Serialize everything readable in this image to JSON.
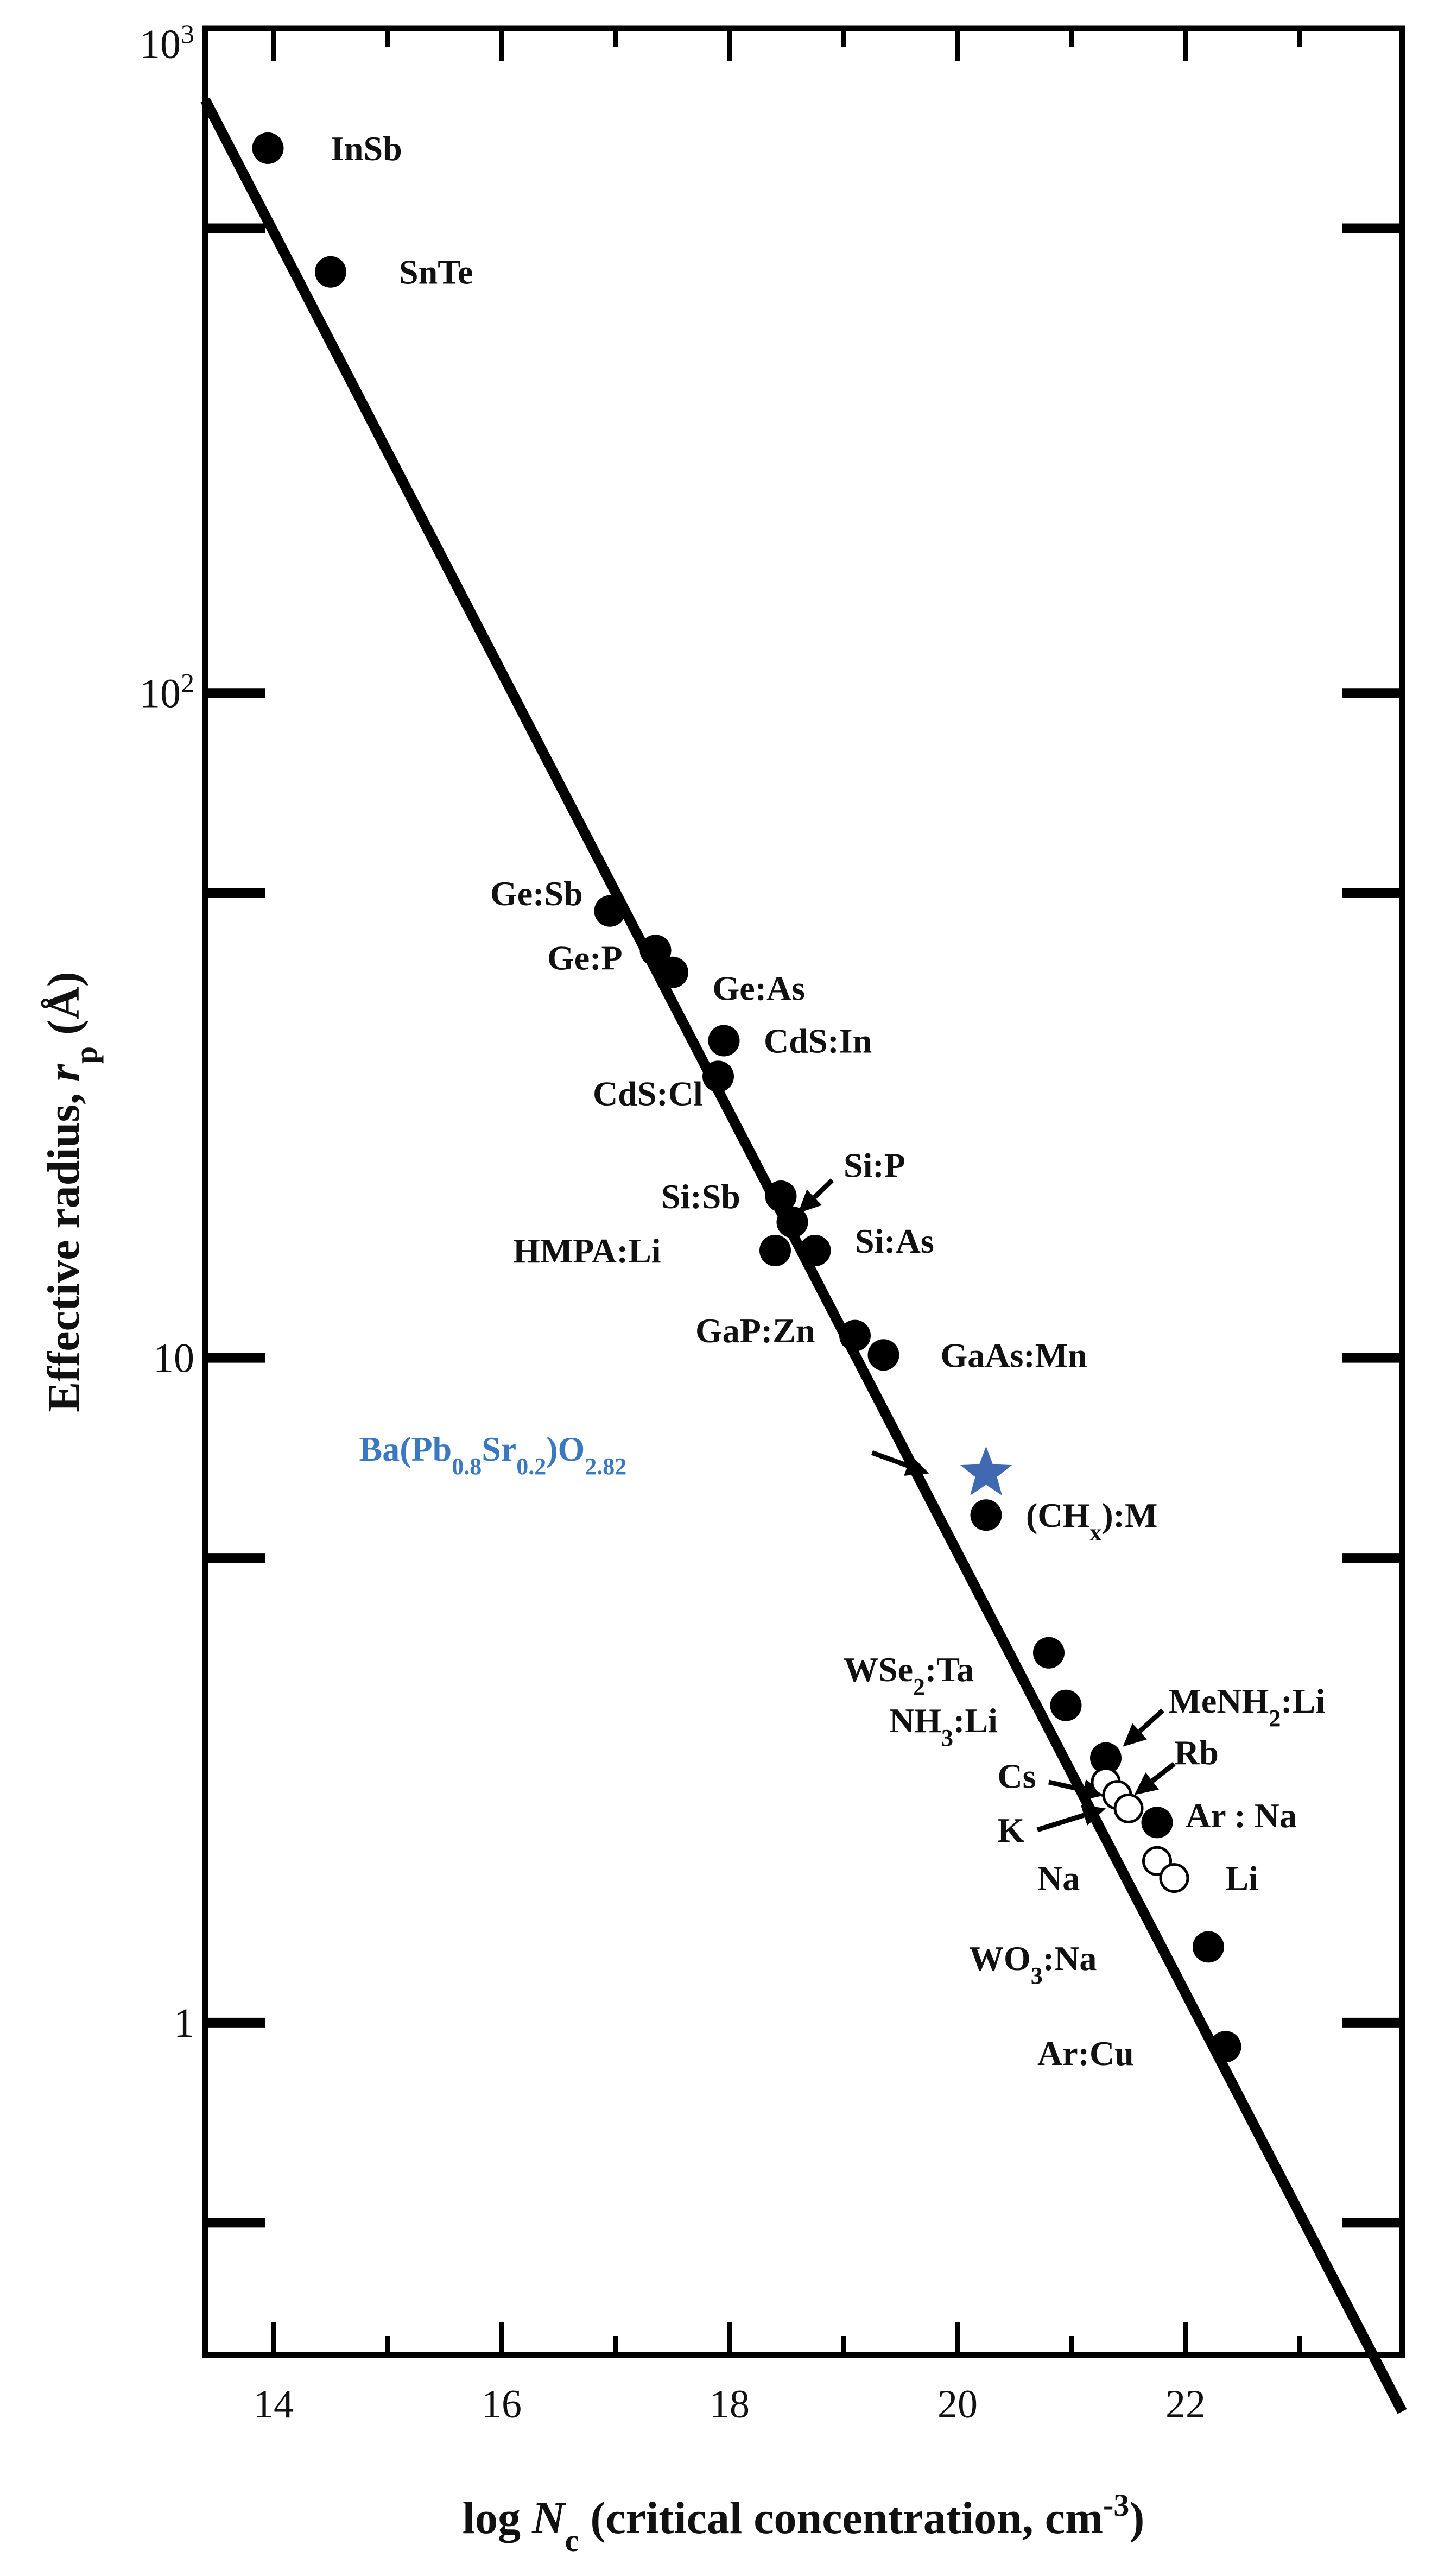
{
  "chart_data": {
    "type": "scatter",
    "xlabel_prefix": "log ",
    "xlabel_var": "N",
    "xlabel_sub": "c",
    "xlabel_rest": " (critical concentration, cm",
    "xlabel_sup": "-3",
    "xlabel_close": ")",
    "ylabel_prefix": "Effective radius, ",
    "ylabel_var": "r",
    "ylabel_sub": "p",
    "ylabel_rest": " (Å)",
    "xlim": [
      13.4,
      23.9
    ],
    "ylim_log10": [
      -0.5,
      3
    ],
    "log_y": true,
    "x_ticks": [
      "14",
      "16",
      "18",
      "20",
      "22"
    ],
    "x_tick_values": [
      14,
      16,
      18,
      20,
      22
    ],
    "y_ticks": [
      {
        "value": 1,
        "base": "1",
        "exp": ""
      },
      {
        "value": 10,
        "base": "10",
        "exp": ""
      },
      {
        "value": 100,
        "base": "10",
        "exp": "2"
      },
      {
        "value": 1000,
        "base": "10",
        "exp": "3"
      }
    ],
    "y_minor_ticks": [
      0.5,
      5,
      50,
      500
    ],
    "fit_line": {
      "x": [
        13.4,
        23.9
      ],
      "y": [
        780,
        0.26
      ]
    },
    "points_filled": [
      {
        "x": 13.95,
        "y": 660
      },
      {
        "x": 14.5,
        "y": 430
      },
      {
        "x": 16.95,
        "y": 47
      },
      {
        "x": 17.35,
        "y": 41
      },
      {
        "x": 17.5,
        "y": 38
      },
      {
        "x": 17.95,
        "y": 30
      },
      {
        "x": 17.9,
        "y": 26.5
      },
      {
        "x": 18.45,
        "y": 17.5
      },
      {
        "x": 18.55,
        "y": 16
      },
      {
        "x": 18.4,
        "y": 14.5
      },
      {
        "x": 18.75,
        "y": 14.5
      },
      {
        "x": 19.1,
        "y": 10.8
      },
      {
        "x": 19.35,
        "y": 10.1
      },
      {
        "x": 20.25,
        "y": 5.8
      },
      {
        "x": 20.8,
        "y": 3.6
      },
      {
        "x": 20.95,
        "y": 3.0
      },
      {
        "x": 21.3,
        "y": 2.5
      },
      {
        "x": 21.75,
        "y": 2.0
      },
      {
        "x": 22.2,
        "y": 1.3
      },
      {
        "x": 22.35,
        "y": 0.92
      }
    ],
    "points_open": [
      {
        "x": 21.3,
        "y": 2.3
      },
      {
        "x": 21.4,
        "y": 2.2
      },
      {
        "x": 21.5,
        "y": 2.1
      },
      {
        "x": 21.75,
        "y": 1.75
      },
      {
        "x": 21.9,
        "y": 1.65
      }
    ],
    "star_point": {
      "x": 20.25,
      "y": 6.7,
      "color": "#4169b2"
    },
    "annotations": [
      {
        "parts": [
          {
            "t": "InSb"
          }
        ],
        "x": 14.5,
        "y": 660
      },
      {
        "parts": [
          {
            "t": "SnTe"
          }
        ],
        "x": 15.1,
        "y": 430
      },
      {
        "parts": [
          {
            "t": "Ge:Sb"
          }
        ],
        "x": 15.9,
        "y": 50
      },
      {
        "parts": [
          {
            "t": "Ge:P"
          }
        ],
        "x": 16.4,
        "y": 40
      },
      {
        "parts": [
          {
            "t": "Ge:As"
          }
        ],
        "x": 17.85,
        "y": 36
      },
      {
        "parts": [
          {
            "t": "CdS:In"
          }
        ],
        "x": 18.3,
        "y": 30
      },
      {
        "parts": [
          {
            "t": "CdS:Cl"
          }
        ],
        "x": 16.8,
        "y": 25
      },
      {
        "parts": [
          {
            "t": "Si:Sb"
          }
        ],
        "x": 17.4,
        "y": 17.5
      },
      {
        "parts": [
          {
            "t": "Si:P"
          }
        ],
        "x": 19.0,
        "y": 19.5
      },
      {
        "parts": [
          {
            "t": "HMPA:Li"
          }
        ],
        "x": 16.1,
        "y": 14.5
      },
      {
        "parts": [
          {
            "t": "Si:As"
          }
        ],
        "x": 19.1,
        "y": 15.0
      },
      {
        "parts": [
          {
            "t": "GaP:Zn"
          }
        ],
        "x": 17.7,
        "y": 11.0
      },
      {
        "parts": [
          {
            "t": "GaAs:Mn"
          }
        ],
        "x": 19.85,
        "y": 10.1
      },
      {
        "parts": [
          {
            "t": "Ba(Pb"
          },
          {
            "t": "0.8",
            "sub": true
          },
          {
            "t": "Sr"
          },
          {
            "t": "0.2",
            "sub": true
          },
          {
            "t": ")O"
          },
          {
            "t": "2.82",
            "sub": true
          }
        ],
        "x": 14.75,
        "y": 7.3,
        "color": "#3a78c0"
      },
      {
        "parts": [
          {
            "t": "(CH"
          },
          {
            "t": "x",
            "sub": true
          },
          {
            "t": "):M"
          }
        ],
        "x": 20.6,
        "y": 5.8
      },
      {
        "parts": [
          {
            "t": "WSe"
          },
          {
            "t": "2",
            "sub": true
          },
          {
            "t": ":Ta"
          }
        ],
        "x": 19.0,
        "y": 3.4
      },
      {
        "parts": [
          {
            "t": "NH"
          },
          {
            "t": "3",
            "sub": true
          },
          {
            "t": ":Li"
          }
        ],
        "x": 19.4,
        "y": 2.85
      },
      {
        "parts": [
          {
            "t": "MeNH"
          },
          {
            "t": "2",
            "sub": true
          },
          {
            "t": ":Li"
          }
        ],
        "x": 21.85,
        "y": 3.05
      },
      {
        "parts": [
          {
            "t": "Rb"
          }
        ],
        "x": 21.9,
        "y": 2.55
      },
      {
        "parts": [
          {
            "t": "Cs"
          }
        ],
        "x": 20.35,
        "y": 2.35
      },
      {
        "parts": [
          {
            "t": "Ar : Na"
          }
        ],
        "x": 22.0,
        "y": 2.05
      },
      {
        "parts": [
          {
            "t": "K"
          }
        ],
        "x": 20.35,
        "y": 1.95
      },
      {
        "parts": [
          {
            "t": "Na"
          }
        ],
        "x": 20.7,
        "y": 1.65
      },
      {
        "parts": [
          {
            "t": "Li"
          }
        ],
        "x": 22.35,
        "y": 1.65
      },
      {
        "parts": [
          {
            "t": "WO"
          },
          {
            "t": "3",
            "sub": true
          },
          {
            "t": ":Na"
          }
        ],
        "x": 20.1,
        "y": 1.25
      },
      {
        "parts": [
          {
            "t": "Ar:Cu"
          }
        ],
        "x": 20.7,
        "y": 0.9
      }
    ],
    "arrows": [
      {
        "from": [
          18.9,
          18.5
        ],
        "to": [
          18.6,
          16.5
        ]
      },
      {
        "from": [
          21.8,
          2.95
        ],
        "to": [
          21.45,
          2.6
        ]
      },
      {
        "from": [
          21.9,
          2.45
        ],
        "to": [
          21.55,
          2.2
        ]
      },
      {
        "from": [
          20.8,
          2.3
        ],
        "to": [
          21.3,
          2.2
        ]
      },
      {
        "from": [
          20.7,
          1.95
        ],
        "to": [
          21.3,
          2.1
        ]
      },
      {
        "from": [
          19.25,
          7.2
        ],
        "to": [
          19.75,
          6.7
        ]
      }
    ]
  }
}
